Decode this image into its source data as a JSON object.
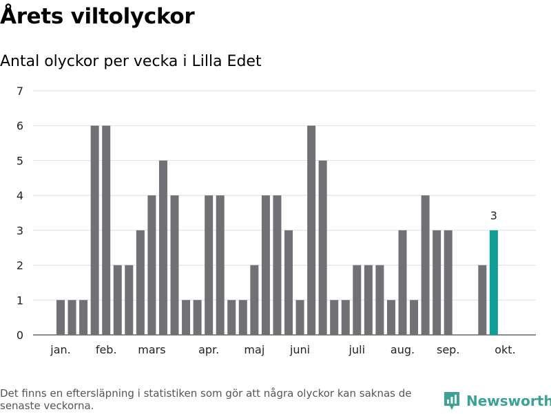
{
  "title": "Årets viltolyckor",
  "subtitle": "Antal olyckor per vecka i Lilla Edet",
  "footnote": "Det finns en eftersläpning i statistiken som gör att några olyckor kan saknas de senaste veckorna.",
  "brand": {
    "name": "Newsworthy",
    "icon": "newsworthy-logo-icon",
    "color": "#3aa396"
  },
  "colors": {
    "bar": "#717074",
    "highlight": "#0e9e95",
    "grid": "#dedede"
  },
  "chart_data": {
    "type": "bar",
    "ylim": [
      0,
      7
    ],
    "yticks": [
      0,
      1,
      2,
      3,
      4,
      5,
      6,
      7
    ],
    "x_tick_labels": [
      {
        "label": "jan.",
        "week": 1
      },
      {
        "label": "feb.",
        "week": 5
      },
      {
        "label": "mars",
        "week": 9
      },
      {
        "label": "apr.",
        "week": 14
      },
      {
        "label": "maj",
        "week": 18
      },
      {
        "label": "juni",
        "week": 22
      },
      {
        "label": "juli",
        "week": 27
      },
      {
        "label": "aug.",
        "week": 31
      },
      {
        "label": "sep.",
        "week": 35
      },
      {
        "label": "okt.",
        "week": 40
      }
    ],
    "weeks": [
      1,
      2,
      3,
      4,
      5,
      6,
      7,
      8,
      9,
      10,
      11,
      12,
      13,
      14,
      15,
      16,
      17,
      18,
      19,
      20,
      21,
      22,
      23,
      24,
      25,
      26,
      27,
      28,
      29,
      30,
      31,
      32,
      33,
      34,
      35,
      36,
      37,
      38,
      39,
      40
    ],
    "values": [
      1,
      1,
      1,
      6,
      6,
      2,
      2,
      3,
      4,
      5,
      4,
      1,
      1,
      4,
      4,
      1,
      1,
      2,
      4,
      4,
      3,
      1,
      6,
      5,
      1,
      1,
      2,
      2,
      2,
      1,
      3,
      1,
      4,
      3,
      3,
      0,
      0,
      2,
      3,
      null
    ],
    "highlight_week": 39,
    "highlight_label": "3"
  }
}
